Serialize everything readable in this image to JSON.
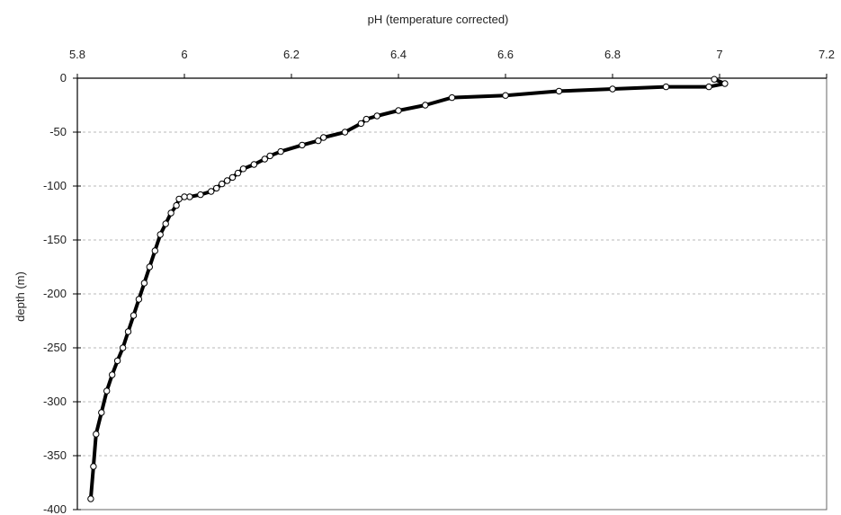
{
  "chart_data": {
    "type": "scatter",
    "title": "",
    "xlabel": "pH (temperature corrected)",
    "ylabel": "depth (m)",
    "xlim": [
      5.8,
      7.2
    ],
    "ylim": [
      -400,
      0
    ],
    "x_ticks": [
      5.8,
      6,
      6.2,
      6.4,
      6.6,
      6.8,
      7,
      7.2
    ],
    "x_tick_labels": [
      "5.8",
      "6",
      "6.2",
      "6.4",
      "6.6",
      "6.8",
      "7",
      "7.2"
    ],
    "y_ticks": [
      0,
      -50,
      -100,
      -150,
      -200,
      -250,
      -300,
      -350,
      -400
    ],
    "y_tick_labels": [
      "0",
      "-50",
      "-100",
      "-150",
      "-200",
      "-250",
      "-300",
      "-350",
      "-400"
    ],
    "x_axis_position": "top",
    "grid": "horizontal dashed",
    "legend": "none",
    "marker": "open circle",
    "marker_color": "#000000",
    "series": [
      {
        "x": [
          6.99,
          7.01,
          6.98,
          6.9,
          6.8,
          6.7,
          6.6,
          6.5,
          6.45,
          6.4,
          6.36,
          6.34,
          6.33,
          6.3,
          6.26,
          6.25,
          6.22,
          6.18,
          6.16,
          6.15,
          6.13,
          6.11,
          6.1,
          6.09,
          6.08,
          6.07,
          6.06,
          6.05,
          6.03,
          6.01,
          6.0,
          5.99,
          5.985,
          5.975,
          5.965,
          5.955,
          5.945,
          5.935,
          5.925,
          5.915,
          5.905,
          5.895,
          5.885,
          5.875,
          5.865,
          5.855,
          5.845,
          5.835,
          5.83,
          5.825
        ],
        "y": [
          -1,
          -5,
          -8,
          -8,
          -10,
          -12,
          -16,
          -18,
          -25,
          -30,
          -35,
          -38,
          -42,
          -50,
          -55,
          -58,
          -62,
          -68,
          -72,
          -75,
          -80,
          -84,
          -88,
          -92,
          -95,
          -98,
          -102,
          -105,
          -108,
          -110,
          -110,
          -112,
          -118,
          -125,
          -135,
          -145,
          -160,
          -175,
          -190,
          -205,
          -220,
          -235,
          -250,
          -262,
          -275,
          -290,
          -310,
          -330,
          -360,
          -390
        ]
      }
    ]
  }
}
